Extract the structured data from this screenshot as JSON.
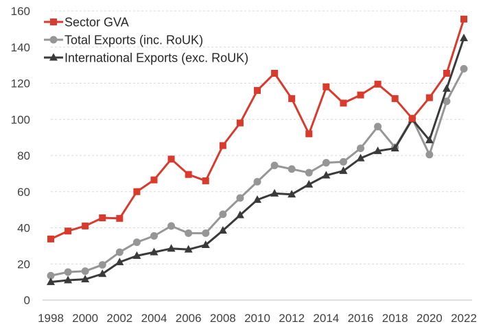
{
  "chart_data": {
    "type": "line",
    "x": [
      1998,
      1999,
      2000,
      2001,
      2002,
      2003,
      2004,
      2005,
      2006,
      2007,
      2008,
      2009,
      2010,
      2011,
      2012,
      2013,
      2014,
      2015,
      2016,
      2017,
      2018,
      2019,
      2020,
      2021,
      2022
    ],
    "x_tick_labels": [
      "1998",
      "2000",
      "2002",
      "2004",
      "2006",
      "2008",
      "2010",
      "2012",
      "2014",
      "2016",
      "2018",
      "2020",
      "2022"
    ],
    "y_tick_labels": [
      "0",
      "20",
      "40",
      "60",
      "80",
      "100",
      "120",
      "140",
      "160"
    ],
    "ylim": [
      0,
      160
    ],
    "grid": "horizontal dashed",
    "legend_position": "top-left",
    "series": [
      {
        "name": "Sector GVA",
        "color": "#d93a2b",
        "marker": "square",
        "values": [
          33.8,
          38.2,
          41,
          45.5,
          45.2,
          60,
          66.5,
          78,
          69.5,
          66,
          85.5,
          98,
          116,
          125.5,
          111.5,
          92,
          118,
          109,
          113.5,
          119.5,
          111.5,
          100.5,
          112,
          125.5,
          155.5
        ]
      },
      {
        "name": "Total Exports (inc. RoUK)",
        "color": "#969696",
        "marker": "circle",
        "values": [
          13.5,
          15.5,
          16,
          19.5,
          26.5,
          32,
          35.5,
          41,
          37,
          37,
          47.5,
          56.5,
          65.5,
          74.5,
          72.5,
          70.5,
          76,
          76.5,
          84,
          96,
          84.5,
          100.5,
          80.5,
          110,
          128
        ]
      },
      {
        "name": "International Exports (exc. RoUK)",
        "color": "#3a3a3a",
        "marker": "triangle",
        "values": [
          10,
          11,
          11.5,
          14.5,
          21,
          24.5,
          26.5,
          28.5,
          28,
          30.5,
          38.5,
          47,
          55.5,
          59,
          58.5,
          64,
          69,
          71.5,
          78.5,
          82.5,
          84,
          100,
          88.5,
          117,
          145
        ]
      }
    ]
  }
}
